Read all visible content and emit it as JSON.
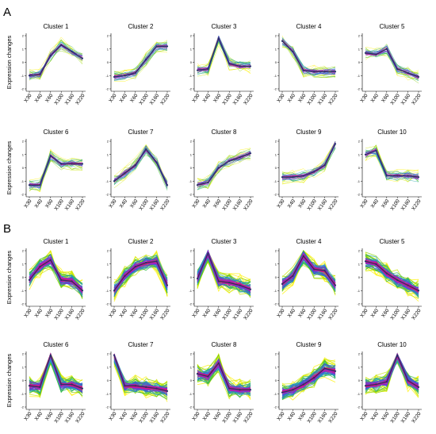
{
  "figure": {
    "panel_labels": [
      "A",
      "B"
    ],
    "ylabel": "Expression changes",
    "xticks": [
      "X30",
      "X40",
      "X60",
      "X100",
      "X160",
      "X220"
    ],
    "yticks": [
      "-2",
      "-1",
      "0",
      "1",
      "2"
    ],
    "colors": {
      "line_ramp": [
        "#fff200",
        "#c8e600",
        "#7fd000",
        "#2cb84a",
        "#1fa3a8",
        "#2a7fd8",
        "#4a4ad0",
        "#8a2ad0",
        "#c21aa8",
        "#e8106a"
      ],
      "centroid": "#22336b"
    }
  },
  "chart_data": [
    {
      "type": "line",
      "panel": "A",
      "x": [
        "X30",
        "X40",
        "X60",
        "X100",
        "X160",
        "X220"
      ],
      "ylim": [
        -2,
        2
      ],
      "clusters": [
        {
          "title": "Cluster 1",
          "centroid": [
            -1.0,
            -0.9,
            0.5,
            1.3,
            0.8,
            0.3
          ]
        },
        {
          "title": "Cluster 2",
          "centroid": [
            -1.1,
            -1.0,
            -0.8,
            0.2,
            1.2,
            1.2
          ]
        },
        {
          "title": "Cluster 3",
          "centroid": [
            -0.6,
            -0.5,
            1.8,
            -0.1,
            -0.3,
            -0.3
          ]
        },
        {
          "title": "Cluster 4",
          "centroid": [
            1.6,
            0.8,
            -0.6,
            -0.7,
            -0.7,
            -0.7
          ]
        },
        {
          "title": "Cluster 5",
          "centroid": [
            0.7,
            0.6,
            1.0,
            -0.5,
            -0.8,
            -1.1
          ]
        },
        {
          "title": "Cluster 6",
          "centroid": [
            -1.3,
            -1.3,
            0.9,
            0.3,
            0.3,
            0.3
          ]
        },
        {
          "title": "Cluster 7",
          "centroid": [
            -1.0,
            -0.4,
            0.2,
            1.4,
            0.4,
            -1.3
          ]
        },
        {
          "title": "Cluster 8",
          "centroid": [
            -1.3,
            -1.1,
            0.0,
            0.5,
            0.8,
            1.1
          ]
        },
        {
          "title": "Cluster 9",
          "centroid": [
            -0.7,
            -0.7,
            -0.6,
            -0.3,
            0.2,
            1.8
          ]
        },
        {
          "title": "Cluster 10",
          "centroid": [
            1.0,
            1.3,
            -0.6,
            -0.6,
            -0.6,
            -0.7
          ]
        }
      ]
    },
    {
      "type": "line",
      "panel": "B",
      "x": [
        "X30",
        "X40",
        "X60",
        "X100",
        "X160",
        "X220"
      ],
      "ylim": [
        -2,
        2
      ],
      "clusters": [
        {
          "title": "Cluster 1",
          "centroid": [
            -0.2,
            0.8,
            1.3,
            -0.2,
            -0.3,
            -1.0
          ]
        },
        {
          "title": "Cluster 2",
          "centroid": [
            -1.0,
            0.1,
            0.8,
            1.1,
            1.2,
            -0.6
          ]
        },
        {
          "title": "Cluster 3",
          "centroid": [
            -0.1,
            1.8,
            -0.3,
            -0.4,
            -0.6,
            -0.9
          ]
        },
        {
          "title": "Cluster 4",
          "centroid": [
            -0.5,
            0.1,
            1.6,
            0.6,
            0.5,
            -0.6
          ]
        },
        {
          "title": "Cluster 5",
          "centroid": [
            1.2,
            1.0,
            0.3,
            -0.2,
            -0.6,
            -1.0
          ]
        },
        {
          "title": "Cluster 6",
          "centroid": [
            -0.4,
            -0.5,
            1.9,
            -0.3,
            -0.3,
            -0.6
          ]
        },
        {
          "title": "Cluster 7",
          "centroid": [
            1.9,
            -0.4,
            -0.4,
            -0.5,
            -0.6,
            -0.8
          ]
        },
        {
          "title": "Cluster 8",
          "centroid": [
            0.5,
            0.3,
            1.3,
            -0.6,
            -0.7,
            -0.7
          ]
        },
        {
          "title": "Cluster 9",
          "centroid": [
            -0.9,
            -0.7,
            -0.3,
            0.2,
            0.9,
            0.7
          ]
        },
        {
          "title": "Cluster 10",
          "centroid": [
            -0.4,
            -0.3,
            -0.1,
            1.9,
            0.0,
            -0.5
          ]
        }
      ]
    }
  ]
}
